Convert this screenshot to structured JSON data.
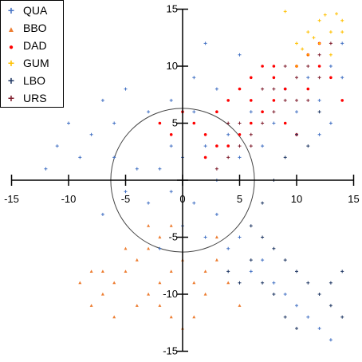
{
  "chart_data": {
    "type": "scatter",
    "title": "",
    "xlabel": "",
    "ylabel": "",
    "xlim": [
      -15,
      15
    ],
    "ylim": [
      -15,
      15
    ],
    "x_ticks": [
      -15,
      -10,
      -5,
      0,
      5,
      10,
      15
    ],
    "y_ticks": [
      -15,
      -10,
      -5,
      0,
      5,
      10,
      15
    ],
    "x_tick_labels": [
      "-15",
      "-10",
      "-5",
      "0",
      "5",
      "10",
      "15"
    ],
    "y_tick_labels": [
      "-15",
      "-10",
      "-5",
      "0",
      "5",
      "10",
      "15"
    ],
    "reference_circle": {
      "center": [
        0,
        0
      ],
      "radius": 6.3
    },
    "grid": false,
    "legend_position": "top-left",
    "series": [
      {
        "name": "QUA",
        "marker": "+",
        "color": "#4472c4",
        "points": [
          [
            -2,
            1
          ],
          [
            -1,
            -1
          ],
          [
            0,
            2
          ],
          [
            1,
            -2
          ],
          [
            2,
            3
          ],
          [
            3,
            0
          ],
          [
            -3,
            -2
          ],
          [
            4,
            4
          ],
          [
            -4,
            1
          ],
          [
            5,
            2
          ],
          [
            -5,
            -1
          ],
          [
            6,
            6
          ],
          [
            -6,
            2
          ],
          [
            7,
            3
          ],
          [
            -7,
            -3
          ],
          [
            8,
            5
          ],
          [
            9,
            8
          ],
          [
            10,
            6
          ],
          [
            11,
            9
          ],
          [
            12,
            7
          ],
          [
            13,
            10
          ],
          [
            -8,
            4
          ],
          [
            -9,
            2
          ],
          [
            -10,
            5
          ],
          [
            -11,
            3
          ],
          [
            -12,
            1
          ],
          [
            4,
            -6
          ],
          [
            6,
            -8
          ],
          [
            8,
            -9
          ],
          [
            10,
            -11
          ],
          [
            12,
            -13
          ],
          [
            13,
            -14
          ],
          [
            11,
            -12
          ],
          [
            9,
            -10
          ],
          [
            7,
            -7
          ],
          [
            5,
            -5
          ],
          [
            -1,
            7
          ],
          [
            1,
            9
          ],
          [
            3,
            8
          ],
          [
            5,
            11
          ],
          [
            2,
            12
          ],
          [
            -3,
            6
          ],
          [
            0,
            -4
          ],
          [
            2,
            -5
          ],
          [
            -2,
            -6
          ],
          [
            14,
            12
          ],
          [
            14,
            9
          ],
          [
            13,
            5
          ],
          [
            12,
            4
          ],
          [
            -6,
            5
          ],
          [
            -7,
            7
          ],
          [
            -5,
            8
          ],
          [
            1,
            6
          ],
          [
            0,
            0
          ],
          [
            -1,
            3
          ],
          [
            3,
            -3
          ]
        ]
      },
      {
        "name": "BBO",
        "marker": "▲",
        "color": "#ed7d31",
        "points": [
          [
            -1,
            -4
          ],
          [
            -2,
            -5
          ],
          [
            -3,
            -6
          ],
          [
            -4,
            -7
          ],
          [
            -5,
            -8
          ],
          [
            -6,
            -9
          ],
          [
            -7,
            -10
          ],
          [
            -8,
            -11
          ],
          [
            -9,
            -9
          ],
          [
            -3,
            -10
          ],
          [
            -2,
            -11
          ],
          [
            -1,
            -12
          ],
          [
            0,
            -13
          ],
          [
            1,
            -9
          ],
          [
            2,
            -8
          ],
          [
            3,
            -7
          ],
          [
            4,
            -9
          ],
          [
            -4,
            -11
          ],
          [
            -6,
            -12
          ],
          [
            -5,
            -6
          ],
          [
            -7,
            -8
          ],
          [
            0,
            -7
          ],
          [
            -1,
            -8
          ],
          [
            2,
            -10
          ],
          [
            5,
            -11
          ],
          [
            1,
            -12
          ],
          [
            -2,
            -9
          ],
          [
            -8,
            -8
          ],
          [
            3,
            -5
          ],
          [
            -3,
            -4
          ]
        ]
      },
      {
        "name": "DAD",
        "marker": "●",
        "color": "#ff0000",
        "points": [
          [
            -2,
            5
          ],
          [
            -1,
            4
          ],
          [
            0,
            6
          ],
          [
            1,
            5
          ],
          [
            2,
            4
          ],
          [
            3,
            6
          ],
          [
            4,
            7
          ],
          [
            5,
            8
          ],
          [
            6,
            9
          ],
          [
            7,
            10
          ],
          [
            8,
            9
          ],
          [
            9,
            8
          ],
          [
            10,
            10
          ],
          [
            11,
            11
          ],
          [
            12,
            12
          ],
          [
            13,
            9
          ],
          [
            14,
            7
          ],
          [
            6,
            5
          ],
          [
            7,
            6
          ],
          [
            8,
            7
          ],
          [
            9,
            5
          ],
          [
            10,
            4
          ],
          [
            4,
            3
          ],
          [
            3,
            3
          ],
          [
            5,
            4
          ],
          [
            2,
            2
          ],
          [
            11,
            8
          ],
          [
            12,
            10
          ],
          [
            6,
            7
          ],
          [
            8,
            10
          ]
        ]
      },
      {
        "name": "GUM",
        "marker": "+",
        "color": "#ffc000",
        "points": [
          [
            9,
            14.8
          ],
          [
            10,
            12
          ],
          [
            11,
            13
          ],
          [
            12,
            14
          ],
          [
            13,
            13
          ],
          [
            14,
            14
          ],
          [
            12,
            12
          ],
          [
            13,
            11
          ],
          [
            11,
            11
          ],
          [
            10,
            10
          ],
          [
            14,
            13
          ],
          [
            12.5,
            14.5
          ],
          [
            13.5,
            14.6
          ],
          [
            10.5,
            11.5
          ],
          [
            11.5,
            12.5
          ]
        ]
      },
      {
        "name": "LBO",
        "marker": "+",
        "color": "#203864",
        "points": [
          [
            6,
            -4
          ],
          [
            7,
            -5
          ],
          [
            8,
            -6
          ],
          [
            9,
            -7
          ],
          [
            10,
            -8
          ],
          [
            11,
            -9
          ],
          [
            12,
            -10
          ],
          [
            13,
            -11
          ],
          [
            14,
            -12
          ],
          [
            8,
            -10
          ],
          [
            9,
            -12
          ],
          [
            10,
            -13
          ],
          [
            7,
            -9
          ],
          [
            6,
            -7
          ],
          [
            5,
            -9
          ],
          [
            4,
            -8
          ],
          [
            8,
            0
          ],
          [
            9,
            2
          ],
          [
            10,
            4
          ],
          [
            11,
            3
          ],
          [
            12,
            6
          ],
          [
            7,
            -2
          ],
          [
            13,
            -9
          ],
          [
            14,
            -8
          ]
        ]
      },
      {
        "name": "URS",
        "marker": "+",
        "color": "#7f1d2d",
        "points": [
          [
            3,
            1
          ],
          [
            4,
            2
          ],
          [
            5,
            3
          ],
          [
            6,
            4
          ],
          [
            7,
            5
          ],
          [
            8,
            6
          ],
          [
            9,
            7
          ],
          [
            10,
            9
          ],
          [
            11,
            10
          ],
          [
            12,
            11
          ],
          [
            13,
            12
          ],
          [
            6,
            3
          ],
          [
            5,
            5
          ],
          [
            7,
            8
          ],
          [
            9,
            10
          ],
          [
            11,
            7
          ],
          [
            4,
            5
          ],
          [
            8,
            8
          ],
          [
            10,
            7
          ],
          [
            12,
            9
          ]
        ]
      }
    ]
  }
}
